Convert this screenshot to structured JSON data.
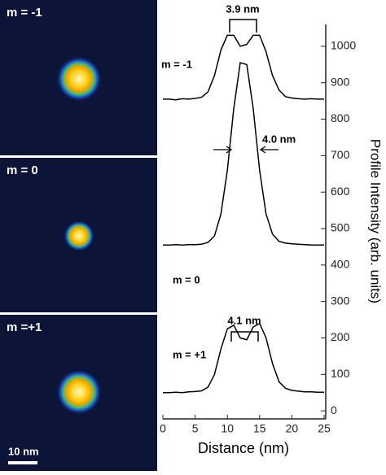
{
  "panels": [
    {
      "label": "m = -1"
    },
    {
      "label": "m = 0"
    },
    {
      "label": "m =+1"
    }
  ],
  "scale_bar": "10 nm",
  "chart_data": {
    "type": "line",
    "x_label": "Distance (nm)",
    "y_label": "Profile Intensity (arb. units)",
    "x": [
      0,
      1,
      2,
      3,
      4,
      5,
      6,
      7,
      8,
      9,
      10,
      11,
      12,
      13,
      14,
      15,
      16,
      17,
      18,
      19,
      20,
      21,
      22,
      23,
      24,
      25
    ],
    "series": [
      {
        "name": "m = -1",
        "color": "#000000",
        "values": [
          855,
          855,
          853,
          856,
          855,
          857,
          860,
          875,
          920,
          990,
          1030,
          1030,
          1000,
          1005,
          1030,
          1030,
          985,
          920,
          880,
          862,
          858,
          856,
          855,
          856,
          855,
          855
        ]
      },
      {
        "name": "m = 0",
        "color": "#000000",
        "values": [
          455,
          455,
          456,
          455,
          456,
          456,
          457,
          462,
          480,
          540,
          660,
          830,
          955,
          950,
          830,
          660,
          540,
          485,
          465,
          460,
          458,
          457,
          456,
          455,
          455,
          455
        ]
      },
      {
        "name": "m = +1",
        "color": "#000000",
        "values": [
          50,
          50,
          51,
          50,
          52,
          53,
          55,
          65,
          100,
          170,
          225,
          235,
          200,
          195,
          230,
          240,
          200,
          130,
          80,
          62,
          56,
          54,
          52,
          52,
          51,
          51
        ]
      }
    ],
    "annotations": [
      "3.9 nm",
      "4.0 nm",
      "4.1 nm"
    ],
    "xlim": [
      0,
      25
    ],
    "xticks": [
      0,
      5,
      10,
      15,
      20,
      25
    ],
    "ylim": [
      -22,
      1060
    ],
    "yticks": [
      0,
      100,
      200,
      300,
      400,
      500,
      600,
      700,
      800,
      900,
      1000
    ]
  }
}
